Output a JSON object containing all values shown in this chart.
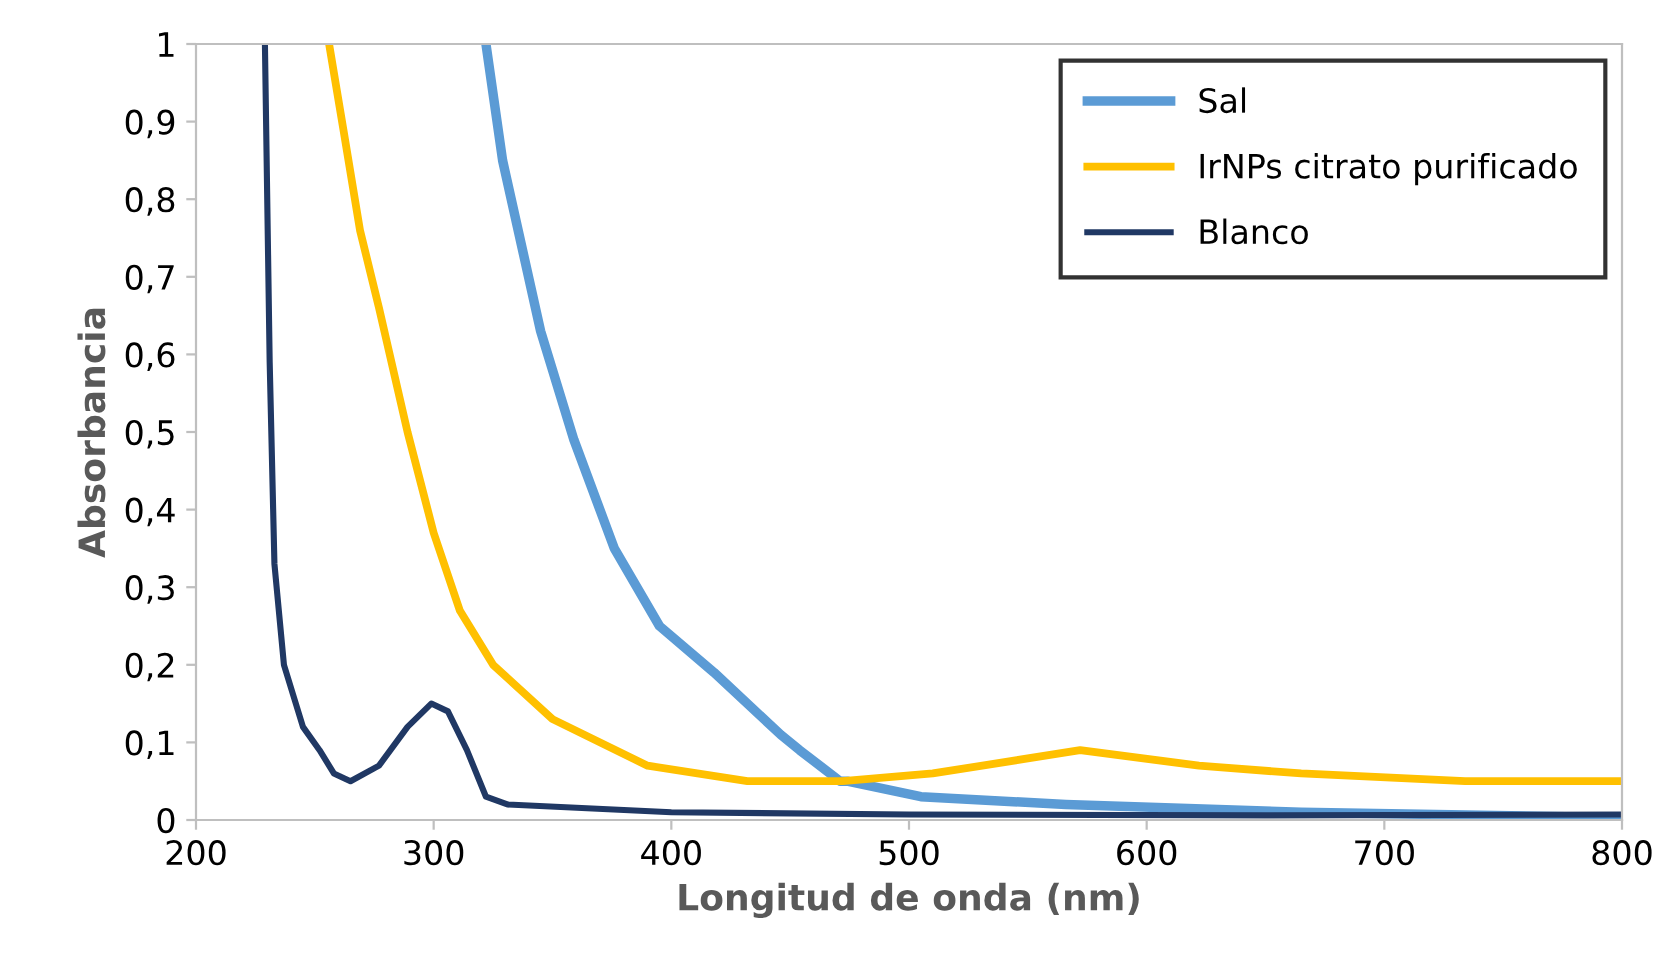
{
  "chart_data": {
    "type": "line",
    "xlabel": "Longitud de onda (nm)",
    "ylabel": "Absorbancia",
    "xlim": [
      200,
      800
    ],
    "xticks": [
      200,
      300,
      400,
      500,
      600,
      700,
      800
    ],
    "ylim": [
      0,
      1
    ],
    "yticks": [
      0,
      {
        "value": 0.1,
        "label": "0,1"
      },
      {
        "value": 0.2,
        "label": "0,2"
      },
      {
        "value": 0.3,
        "label": "0,3"
      },
      {
        "value": 0.4,
        "label": "0,4"
      },
      {
        "value": 0.5,
        "label": "0,5"
      },
      {
        "value": 0.6,
        "label": "0,6"
      },
      {
        "value": 0.7,
        "label": "0,7"
      },
      {
        "value": 0.8,
        "label": "0,8"
      },
      {
        "value": 0.9,
        "label": "0,9"
      },
      1
    ],
    "grid": false,
    "legend": "top right",
    "marker": "none",
    "line_style": "solid",
    "series": [
      {
        "name": "Sal",
        "color": "#5b9bd5",
        "x": [
          322,
          329,
          345,
          359,
          376,
          395,
          418,
          446,
          454,
          471,
          474,
          505,
          566,
          665,
          800
        ],
        "values": [
          1.0,
          0.85,
          0.63,
          0.49,
          0.35,
          0.25,
          0.19,
          0.11,
          0.09,
          0.05,
          0.05,
          0.03,
          0.02,
          0.01,
          0.003
        ]
      },
      {
        "name": "IrNPs citrato purificado",
        "color": "#ffc000",
        "x": [
          256,
          262,
          269,
          277,
          289,
          300,
          311,
          325,
          350,
          390,
          432,
          454,
          472,
          510,
          572,
          622,
          665,
          734,
          800
        ],
        "values": [
          1.0,
          0.89,
          0.76,
          0.66,
          0.5,
          0.37,
          0.27,
          0.2,
          0.13,
          0.07,
          0.05,
          0.05,
          0.05,
          0.06,
          0.09,
          0.07,
          0.06,
          0.05,
          0.05
        ]
      },
      {
        "name": "Blanco",
        "color": "#203864",
        "x": [
          229,
          231,
          233,
          237,
          245,
          252,
          258,
          265,
          277,
          289,
          299,
          306,
          314,
          322,
          331,
          400,
          500,
          650,
          800
        ],
        "values": [
          1.0,
          0.59,
          0.33,
          0.2,
          0.12,
          0.09,
          0.06,
          0.05,
          0.07,
          0.12,
          0.15,
          0.14,
          0.09,
          0.03,
          0.02,
          0.01,
          0.007,
          0.006,
          0.007
        ]
      }
    ]
  }
}
